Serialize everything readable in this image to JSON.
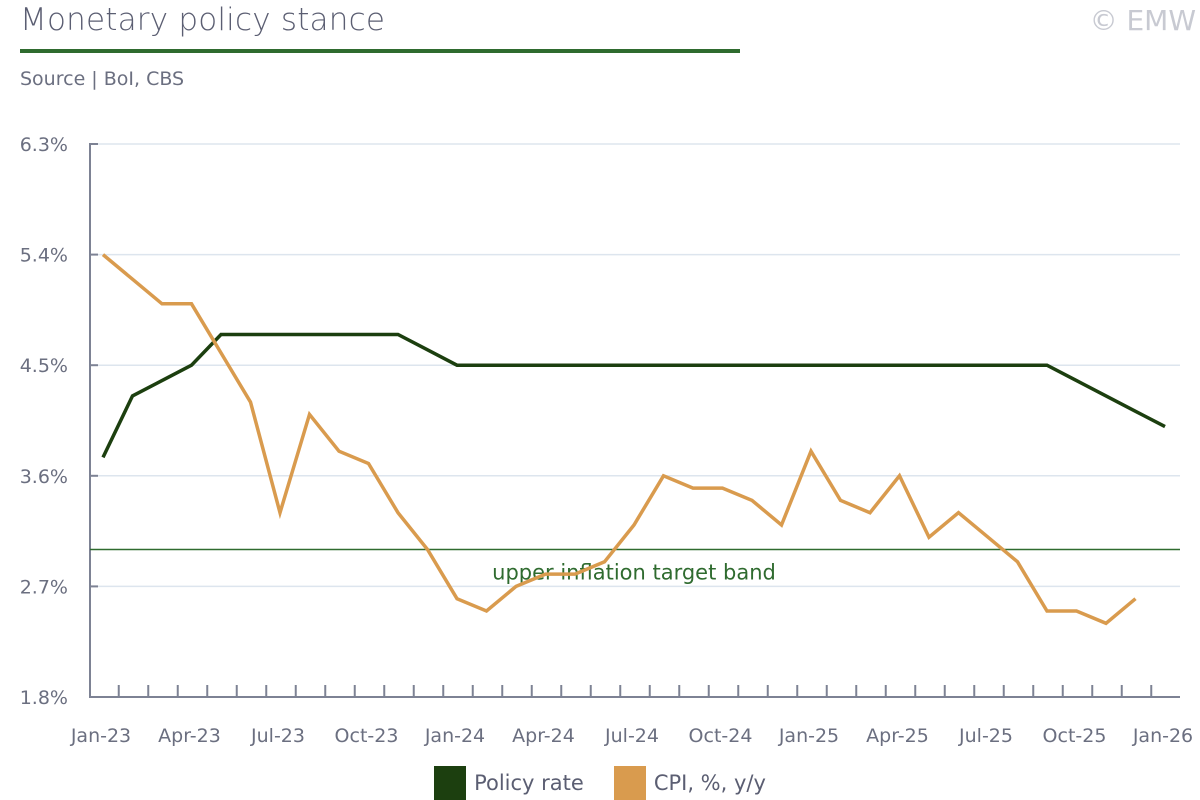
{
  "header": {
    "title": "Monetary policy stance",
    "source": "Source | BoI, CBS",
    "copyright": "© EMW"
  },
  "colors": {
    "policy": "#1c3f0f",
    "cpi": "#d99b4e",
    "band": "#2f6b2f",
    "grid": "#dde5ee",
    "axis": "#7d8294"
  },
  "chart_data": {
    "type": "line",
    "title": "Monetary policy stance",
    "xlabel": "",
    "ylabel": "",
    "ylim": [
      1.8,
      6.3
    ],
    "yticks": [
      "1.8%",
      "2.7%",
      "3.6%",
      "4.5%",
      "5.4%",
      "6.3%"
    ],
    "ytick_values": [
      1.8,
      2.7,
      3.6,
      4.5,
      5.4,
      6.3
    ],
    "xtick_labels": [
      "Jan-23",
      "Apr-23",
      "Jul-23",
      "Oct-23",
      "Jan-24",
      "Apr-24",
      "Jul-24",
      "Oct-24",
      "Jan-25",
      "Apr-25",
      "Jul-25",
      "Oct-25",
      "Jan-26"
    ],
    "months": [
      "Jan-23",
      "Feb-23",
      "Mar-23",
      "Apr-23",
      "May-23",
      "Jun-23",
      "Jul-23",
      "Aug-23",
      "Sep-23",
      "Oct-23",
      "Nov-23",
      "Dec-23",
      "Jan-24",
      "Feb-24",
      "Mar-24",
      "Apr-24",
      "May-24",
      "Jun-24",
      "Jul-24",
      "Aug-24",
      "Sep-24",
      "Oct-24",
      "Nov-24",
      "Dec-24",
      "Jan-25",
      "Feb-25",
      "Mar-25",
      "Apr-25",
      "May-25",
      "Jun-25",
      "Jul-25",
      "Aug-25",
      "Sep-25",
      "Oct-25",
      "Nov-25",
      "Dec-25",
      "Jan-26"
    ],
    "series": [
      {
        "name": "Policy rate",
        "values": [
          3.75,
          4.25,
          4.375,
          4.5,
          4.75,
          4.75,
          4.75,
          4.75,
          4.75,
          4.75,
          4.75,
          4.625,
          4.5,
          4.5,
          4.5,
          4.5,
          4.5,
          4.5,
          4.5,
          4.5,
          4.5,
          4.5,
          4.5,
          4.5,
          4.5,
          4.5,
          4.5,
          4.5,
          4.5,
          4.5,
          4.5,
          4.5,
          4.5,
          4.375,
          4.25,
          4.125,
          4.0
        ]
      },
      {
        "name": "CPI, %, y/y",
        "values": [
          5.4,
          5.2,
          5.0,
          5.0,
          4.6,
          4.2,
          3.3,
          4.1,
          3.8,
          3.7,
          3.3,
          3.0,
          2.6,
          2.5,
          2.7,
          2.8,
          2.8,
          2.9,
          3.2,
          3.6,
          3.5,
          3.5,
          3.4,
          3.2,
          3.8,
          3.4,
          3.3,
          3.6,
          3.1,
          3.3,
          3.1,
          2.9,
          2.5,
          2.5,
          2.4,
          2.6
        ]
      }
    ],
    "annotations": [
      {
        "text": "upper inflation target band",
        "y": 3.0
      }
    ],
    "grid": true,
    "legend": "bottom-center"
  }
}
